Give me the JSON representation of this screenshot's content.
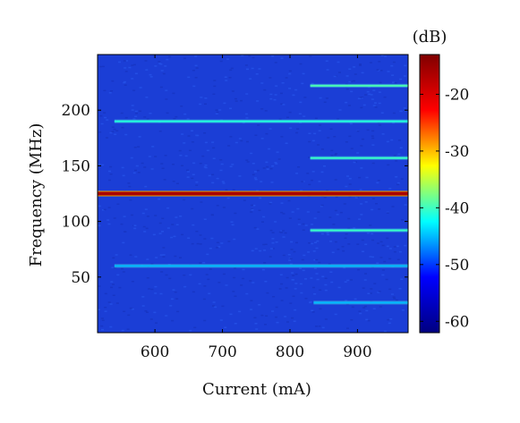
{
  "chart_data": {
    "type": "heatmap",
    "xlabel": "Current (mA)",
    "ylabel": "Frequency (MHz)",
    "xlim": [
      515,
      975
    ],
    "ylim": [
      0,
      250
    ],
    "x_ticks": [
      600,
      700,
      800,
      900
    ],
    "y_ticks": [
      50,
      100,
      150,
      200
    ],
    "colorbar": {
      "unit_label": "(dB)",
      "range": [
        -62,
        -13
      ],
      "ticks": [
        -20,
        -30,
        -40,
        -50,
        -60
      ],
      "colormap": "jet",
      "colors": [
        "#000080",
        "#0000ff",
        "#00ffff",
        "#ffff00",
        "#ff0000",
        "#800000"
      ]
    },
    "background_level_db": -59,
    "background_color": "#1b3ed6",
    "lines": [
      {
        "frequency": 125,
        "x_start": 515,
        "x_end": 975,
        "level_db": -15
      },
      {
        "frequency": 190,
        "x_start": 540,
        "x_end": 975,
        "level_db": -42
      },
      {
        "frequency": 60,
        "x_start": 540,
        "x_end": 975,
        "level_db": -47
      },
      {
        "frequency": 222,
        "x_start": 830,
        "x_end": 975,
        "level_db": -40
      },
      {
        "frequency": 157,
        "x_start": 830,
        "x_end": 975,
        "level_db": -41
      },
      {
        "frequency": 92,
        "x_start": 830,
        "x_end": 975,
        "level_db": -41
      },
      {
        "frequency": 27,
        "x_start": 835,
        "x_end": 975,
        "level_db": -47
      }
    ]
  }
}
